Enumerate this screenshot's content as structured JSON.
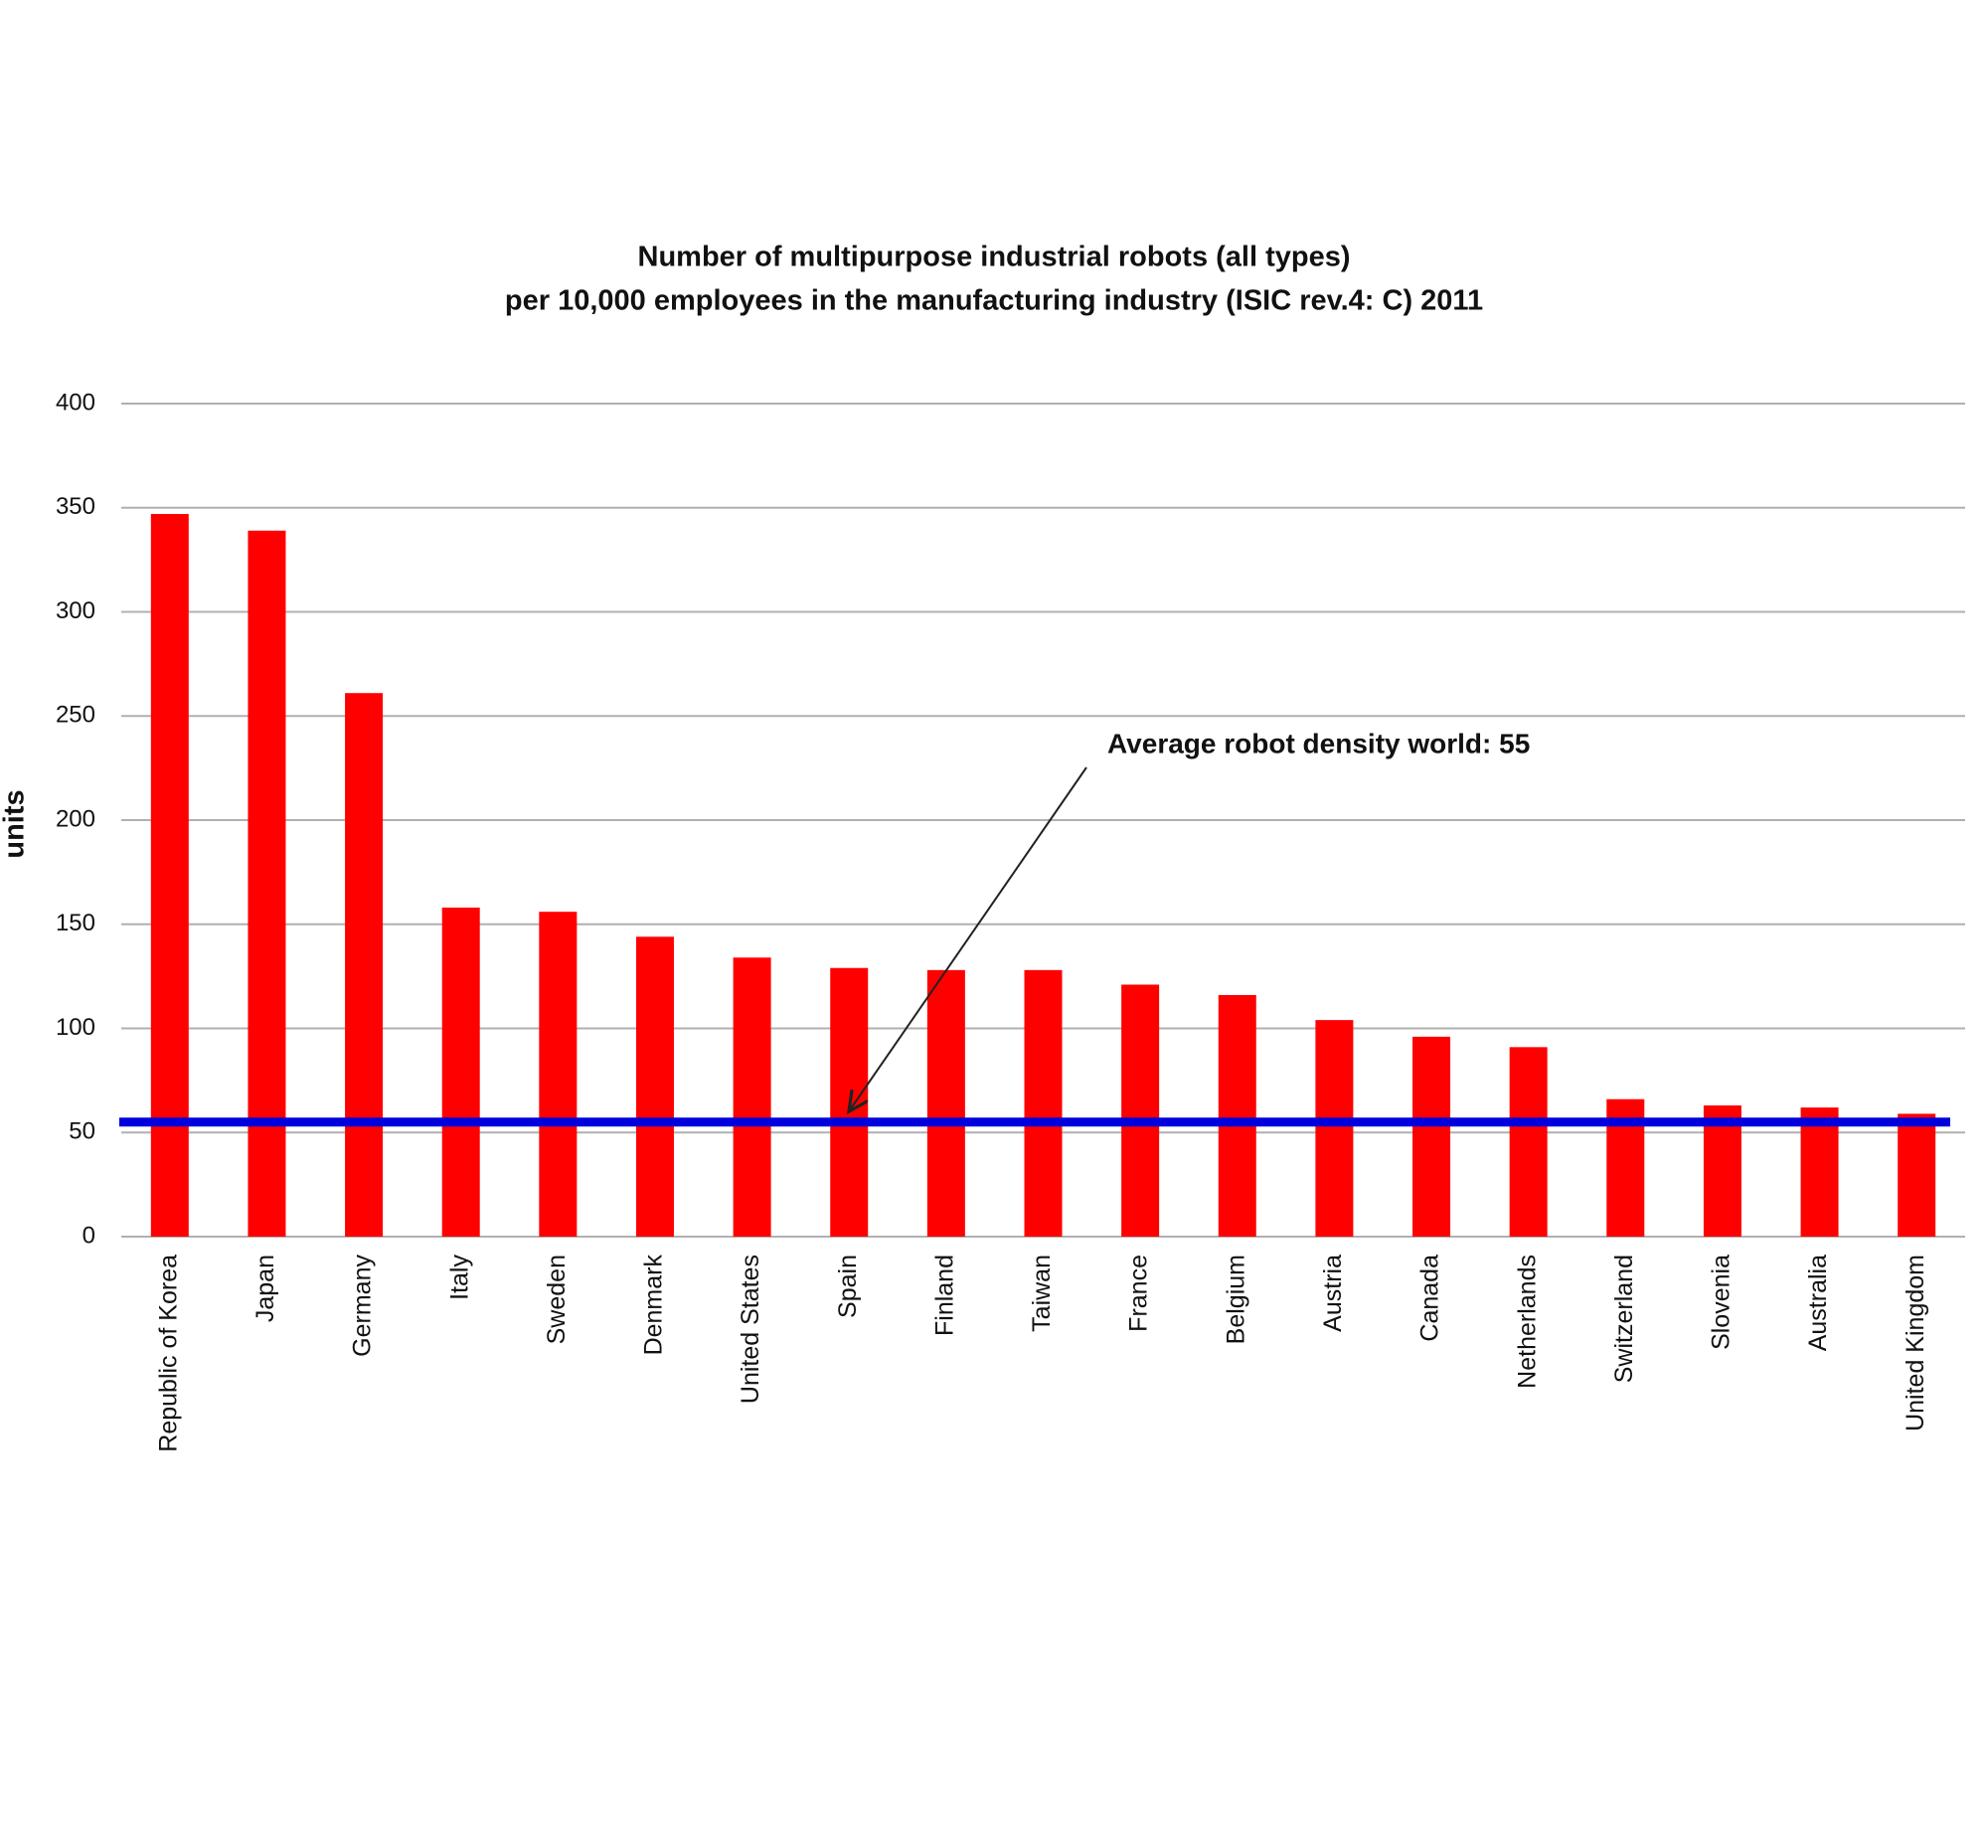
{
  "chart_data": {
    "type": "bar",
    "title": "Number of multipurpose industrial robots (all types)",
    "subtitle": "per 10,000 employees in the manufacturing industry (ISIC rev.4: C) 2011",
    "y_label": "units",
    "categories": [
      "Republic of Korea",
      "Japan",
      "Germany",
      "Italy",
      "Sweden",
      "Denmark",
      "United States",
      "Spain",
      "Finland",
      "Taiwan",
      "France",
      "Belgium",
      "Austria",
      "Canada",
      "Netherlands",
      "Switzerland",
      "Slovenia",
      "Australia",
      "United Kingdom"
    ],
    "values": [
      347,
      339,
      261,
      158,
      156,
      144,
      134,
      129,
      128,
      128,
      121,
      116,
      104,
      96,
      91,
      66,
      63,
      62,
      59
    ],
    "color": "#ff0000",
    "ylim": [
      0,
      400
    ],
    "yticks": [
      0,
      50,
      100,
      150,
      200,
      250,
      300,
      350,
      400
    ],
    "grid": true,
    "average_line": {
      "value": 55,
      "color": "#0000dd",
      "annotation": "Average robot density world: 55"
    }
  }
}
